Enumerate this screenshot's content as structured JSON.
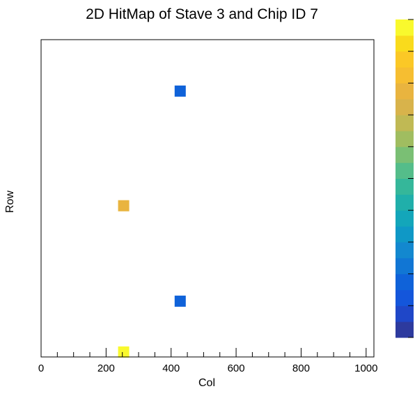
{
  "chart_data": {
    "type": "heatmap",
    "title": "2D HitMap of Stave 3 and Chip ID 7",
    "xlabel": "Col",
    "ylabel": "Row",
    "xlim": [
      0,
      1024
    ],
    "ylim": [
      0,
      512
    ],
    "x_ticks": [
      0,
      200,
      400,
      600,
      800,
      1000
    ],
    "x_tick_labels": [
      "0",
      "200",
      "400",
      "600",
      "800",
      "1000"
    ],
    "y_tick_labels_shown": false,
    "grid": false,
    "cells": [
      {
        "col": 428,
        "row": 429,
        "level": 3
      },
      {
        "col": 254,
        "row": 244,
        "level": 15
      },
      {
        "col": 428,
        "row": 90,
        "level": 3
      },
      {
        "col": 254,
        "row": 8,
        "level": 19
      }
    ],
    "colorbar": {
      "levels": 20,
      "colors": [
        "#2d3a9e",
        "#1f47c8",
        "#1456db",
        "#0f62d9",
        "#1176d4",
        "#1388cf",
        "#0f98c6",
        "#13a6ba",
        "#20afaa",
        "#35b79a",
        "#54bd8a",
        "#7abf74",
        "#a0bd60",
        "#c0b954",
        "#d8b34b",
        "#e9b43f",
        "#f6be31",
        "#fbc826",
        "#f9db1c",
        "#f9f92d"
      ],
      "ticks_shown": true,
      "tick_labels_shown": false
    }
  }
}
